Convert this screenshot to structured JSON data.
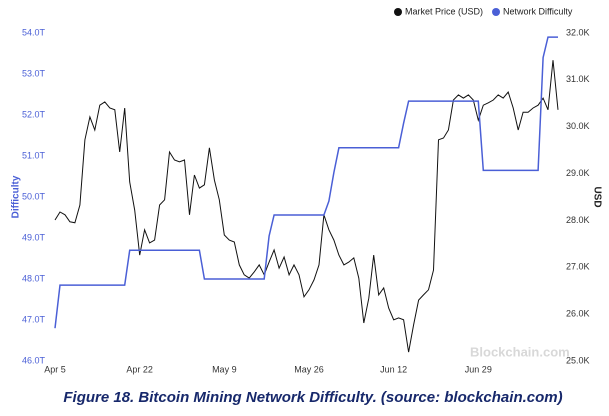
{
  "chart_data": {
    "type": "line",
    "caption": "Figure 18. Bitcoin Mining Network Difficulty. (source: blockchain.com)",
    "ylabel": "Difficulty",
    "y2label": "USD",
    "watermark": "Blockchain.com",
    "legend": "top-right",
    "grid": false,
    "categories": [
      "Apr 5",
      null,
      null,
      null,
      null,
      null,
      null,
      null,
      null,
      null,
      null,
      null,
      null,
      null,
      null,
      null,
      null,
      "Apr 22",
      null,
      null,
      null,
      null,
      null,
      null,
      null,
      null,
      null,
      null,
      null,
      null,
      null,
      null,
      null,
      null,
      "May 9",
      null,
      null,
      null,
      null,
      null,
      null,
      null,
      null,
      null,
      null,
      null,
      null,
      null,
      null,
      null,
      null,
      "May 26",
      null,
      null,
      null,
      null,
      null,
      null,
      null,
      null,
      null,
      null,
      null,
      null,
      null,
      null,
      null,
      null,
      "Jun 12",
      null,
      null,
      null,
      null,
      null,
      null,
      null,
      null,
      null,
      null,
      null,
      null,
      null,
      null,
      null,
      null,
      "Jun 29",
      null,
      null,
      null,
      null,
      null,
      null,
      null,
      null,
      null,
      null,
      null,
      null,
      null,
      null,
      null,
      null
    ],
    "ylim": [
      46,
      54
    ],
    "yticks": [
      {
        "value": 46,
        "label": "46.0T"
      },
      {
        "value": 47,
        "label": "47.0T"
      },
      {
        "value": 48,
        "label": "48.0T"
      },
      {
        "value": 49,
        "label": "49.0T"
      },
      {
        "value": 50,
        "label": "50.0T"
      },
      {
        "value": 51,
        "label": "51.0T"
      },
      {
        "value": 52,
        "label": "52.0T"
      },
      {
        "value": 53,
        "label": "53.0T"
      },
      {
        "value": 54,
        "label": "54.0T"
      }
    ],
    "y2lim": [
      25000,
      32000
    ],
    "y2ticks": [
      {
        "value": 25000,
        "label": "25.0K"
      },
      {
        "value": 26000,
        "label": "26.0K"
      },
      {
        "value": 27000,
        "label": "27.0K"
      },
      {
        "value": 28000,
        "label": "28.0K"
      },
      {
        "value": 29000,
        "label": "29.0K"
      },
      {
        "value": 30000,
        "label": "30.0K"
      },
      {
        "value": 31000,
        "label": "31.0K"
      },
      {
        "value": 32000,
        "label": "32.0K"
      }
    ],
    "series": [
      {
        "name": "Market Price (USD)",
        "color": "#111111",
        "axis": "y2",
        "values": [
          28010,
          28180,
          28120,
          27970,
          27950,
          28330,
          29720,
          30210,
          29930,
          30460,
          30530,
          30400,
          30360,
          29460,
          30400,
          28820,
          28220,
          27260,
          27800,
          27520,
          27580,
          28330,
          28440,
          29460,
          29290,
          29250,
          29290,
          28120,
          28970,
          28690,
          28760,
          29550,
          28860,
          28440,
          27690,
          27580,
          27540,
          27050,
          26840,
          26770,
          26900,
          27050,
          26840,
          27110,
          27370,
          26980,
          27220,
          26840,
          27050,
          26840,
          26370,
          26520,
          26730,
          27050,
          28120,
          27800,
          27580,
          27260,
          27050,
          27110,
          27200,
          26770,
          25810,
          26340,
          27260,
          26410,
          26560,
          26130,
          25880,
          25920,
          25880,
          25190,
          25770,
          26300,
          26410,
          26520,
          26940,
          29720,
          29760,
          29930,
          30570,
          30680,
          30610,
          30680,
          30570,
          30140,
          30460,
          30510,
          30570,
          30680,
          30610,
          30740,
          30400,
          29930,
          30310,
          30310,
          30400,
          30460,
          30610,
          30360,
          31420,
          30360
        ]
      },
      {
        "name": "Network Difficulty",
        "color": "#4a5fd6",
        "values": [
          46.8,
          47.85,
          47.85,
          47.85,
          47.85,
          47.85,
          47.85,
          47.85,
          47.85,
          47.85,
          47.85,
          47.85,
          47.85,
          47.85,
          47.85,
          48.7,
          48.7,
          48.7,
          48.7,
          48.7,
          48.7,
          48.7,
          48.7,
          48.7,
          48.7,
          48.7,
          48.7,
          48.7,
          48.7,
          48.7,
          48.0,
          48.0,
          48.0,
          48.0,
          48.0,
          48.0,
          48.0,
          48.0,
          48.0,
          48.0,
          48.0,
          48.0,
          48.0,
          49.05,
          49.56,
          49.56,
          49.56,
          49.56,
          49.56,
          49.56,
          49.56,
          49.56,
          49.56,
          49.56,
          49.56,
          49.9,
          50.6,
          51.2,
          51.2,
          51.2,
          51.2,
          51.2,
          51.2,
          51.2,
          51.2,
          51.2,
          51.2,
          51.2,
          51.2,
          51.2,
          51.8,
          52.34,
          52.34,
          52.34,
          52.34,
          52.34,
          52.34,
          52.34,
          52.34,
          52.34,
          52.34,
          52.34,
          52.34,
          52.34,
          52.34,
          52.34,
          50.65,
          50.65,
          50.65,
          50.65,
          50.65,
          50.65,
          50.65,
          50.65,
          50.65,
          50.65,
          50.65,
          50.65,
          53.4,
          53.9,
          53.9,
          53.9
        ]
      }
    ]
  }
}
